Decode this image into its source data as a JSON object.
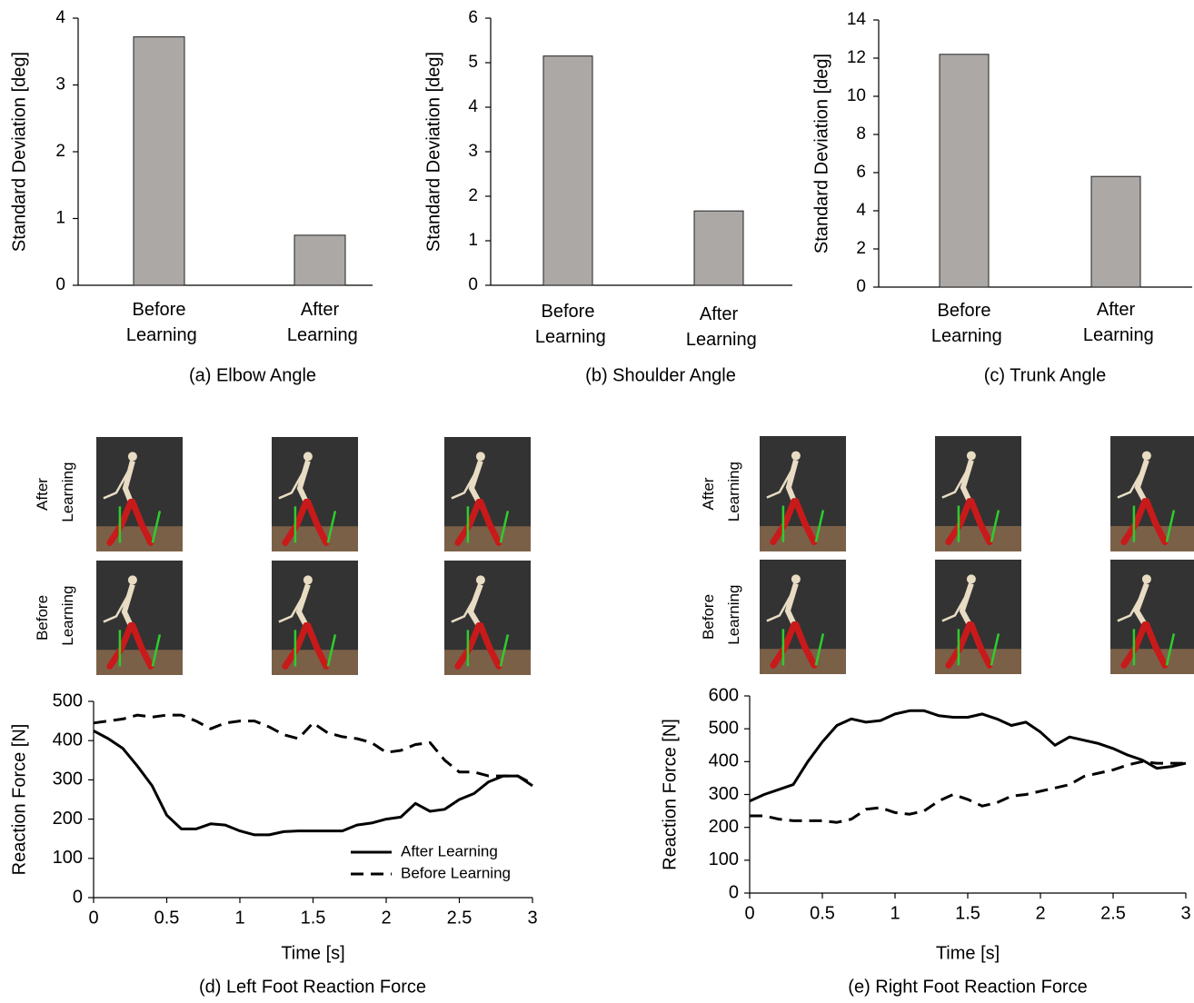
{
  "chart_data": [
    {
      "type": "bar",
      "caption": "(a) Elbow Angle",
      "ylabel": "Standard Deviation [deg]",
      "categories": [
        "Before Learning",
        "After Learning"
      ],
      "values": [
        3.72,
        0.75
      ],
      "color": "#aca8a6",
      "ylim": [
        0,
        4
      ],
      "yticks": [
        0,
        1,
        2,
        3,
        4
      ]
    },
    {
      "type": "bar",
      "caption": "(b) Shoulder Angle",
      "ylabel": "Standard Deviation [deg]",
      "categories": [
        "Before Learning",
        "After Learning"
      ],
      "values": [
        5.15,
        1.67
      ],
      "color": "#aca8a6",
      "ylim": [
        0,
        6
      ],
      "yticks": [
        0,
        1,
        2,
        3,
        4,
        5,
        6
      ]
    },
    {
      "type": "bar",
      "caption": "(c) Trunk Angle",
      "ylabel": "Standard Deviation [deg]",
      "categories": [
        "Before Learning",
        "After Learning"
      ],
      "values": [
        12.2,
        5.8
      ],
      "color": "#aca8a6",
      "ylim": [
        0,
        14
      ],
      "yticks": [
        0,
        2,
        4,
        6,
        8,
        10,
        12,
        14
      ]
    },
    {
      "type": "line",
      "caption": "(d) Left Foot Reaction Force",
      "xlabel": "Time [s]",
      "ylabel": "Reaction Force [N]",
      "x": [
        0,
        0.1,
        0.2,
        0.3,
        0.4,
        0.5,
        0.6,
        0.7,
        0.8,
        0.9,
        1.0,
        1.1,
        1.2,
        1.3,
        1.4,
        1.5,
        1.6,
        1.7,
        1.8,
        1.9,
        2.0,
        2.1,
        2.2,
        2.3,
        2.4,
        2.5,
        2.6,
        2.7,
        2.8,
        2.9,
        3.0
      ],
      "series": [
        {
          "name": "After Learning",
          "color": "#000000",
          "line_style": "solid",
          "values": [
            425,
            405,
            380,
            335,
            285,
            210,
            175,
            175,
            188,
            185,
            170,
            160,
            160,
            168,
            170,
            170,
            170,
            170,
            185,
            190,
            200,
            205,
            240,
            220,
            225,
            250,
            265,
            295,
            310,
            310,
            285
          ]
        },
        {
          "name": "Before Learning",
          "color": "#000000",
          "line_style": "dashed",
          "values": [
            445,
            450,
            455,
            465,
            460,
            465,
            465,
            450,
            430,
            445,
            450,
            450,
            435,
            415,
            405,
            445,
            420,
            410,
            405,
            395,
            370,
            375,
            390,
            395,
            350,
            320,
            320,
            310,
            310,
            310,
            290
          ]
        }
      ],
      "xlim": [
        0,
        3
      ],
      "xticks": [
        0,
        0.5,
        1,
        1.5,
        2,
        2.5,
        3
      ],
      "ylim": [
        0,
        500
      ],
      "yticks": [
        0,
        100,
        200,
        300,
        400,
        500
      ],
      "legend": "lower right"
    },
    {
      "type": "line",
      "caption": "(e) Right Foot Reaction Force",
      "xlabel": "Time [s]",
      "ylabel": "Reaction Force [N]",
      "x": [
        0,
        0.1,
        0.2,
        0.3,
        0.4,
        0.5,
        0.6,
        0.7,
        0.8,
        0.9,
        1.0,
        1.1,
        1.2,
        1.3,
        1.4,
        1.5,
        1.6,
        1.7,
        1.8,
        1.9,
        2.0,
        2.1,
        2.2,
        2.3,
        2.4,
        2.5,
        2.6,
        2.7,
        2.8,
        2.9,
        3.0
      ],
      "series": [
        {
          "color": "#000000",
          "line_style": "solid",
          "values": [
            280,
            300,
            315,
            330,
            400,
            460,
            510,
            530,
            520,
            525,
            545,
            555,
            555,
            540,
            535,
            535,
            545,
            530,
            510,
            520,
            490,
            450,
            475,
            465,
            455,
            440,
            420,
            405,
            380,
            385,
            395
          ]
        },
        {
          "color": "#000000",
          "line_style": "dashed",
          "values": [
            235,
            235,
            225,
            220,
            220,
            220,
            215,
            225,
            255,
            260,
            245,
            240,
            250,
            280,
            300,
            285,
            265,
            275,
            295,
            300,
            310,
            320,
            330,
            355,
            365,
            375,
            390,
            400,
            395,
            395,
            395
          ]
        }
      ],
      "xlim": [
        0,
        3
      ],
      "xticks": [
        0,
        0.5,
        1,
        1.5,
        2,
        2.5,
        3
      ],
      "ylim": [
        0,
        600
      ],
      "yticks": [
        0,
        100,
        200,
        300,
        400,
        500,
        600
      ]
    }
  ],
  "image_panels": [
    {
      "row_labels": [
        "After Learning",
        "Before Learning"
      ]
    },
    {
      "row_labels": [
        "After Learning",
        "Before Learning"
      ]
    }
  ]
}
